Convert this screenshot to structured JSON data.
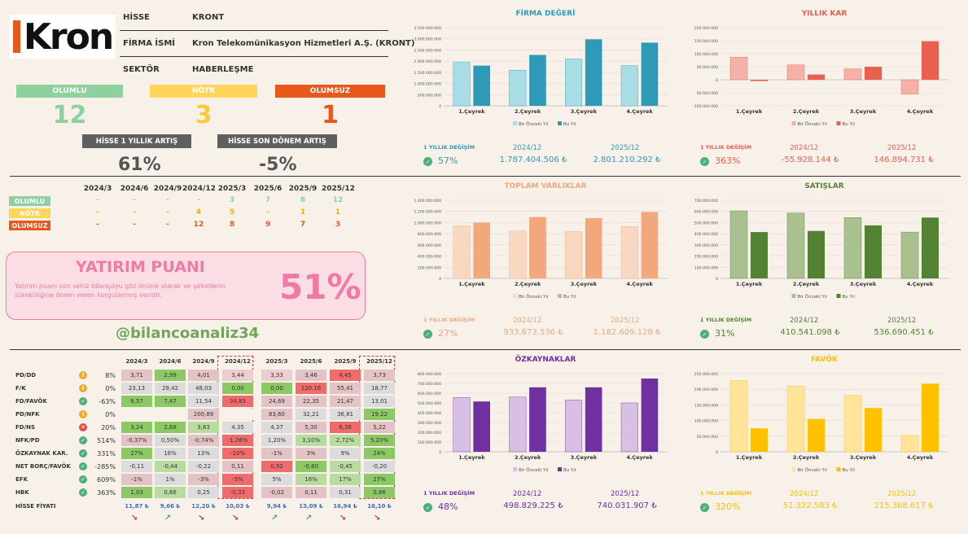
{
  "company": {
    "logo_text": "Kron",
    "fields": [
      {
        "key": "HİSSE",
        "value": "KRONT"
      },
      {
        "key": "FİRMA İSMİ",
        "value": "Kron Telekomünikasyon Hizmetleri A.Ş. (KRONT)"
      },
      {
        "key": "SEKTÖR",
        "value": "HABERLEŞME"
      }
    ]
  },
  "signals": {
    "olumlu_label": "OLUMLU",
    "olumlu_count": "12",
    "notr_label": "NÖTR",
    "notr_count": "3",
    "olumsuz_label": "OLUMSUZ",
    "olumsuz_count": "1",
    "colors": {
      "olumlu": "#8fd19e",
      "notr": "#ffd65a",
      "olumsuz": "#e8571c"
    }
  },
  "changes": {
    "yearly_label": "HİSSE 1 YILLIK ARTIŞ",
    "yearly_value": "61%",
    "period_label": "HİSSE SON DÖNEM ARTIŞ",
    "period_value": "-5%"
  },
  "history": {
    "periods": [
      "2024/3",
      "2024/6",
      "2024/9",
      "2024/12",
      "2025/3",
      "2025/6",
      "2025/9",
      "2025/12"
    ],
    "rows": [
      {
        "label": "OLUMLU",
        "color": "#8fd19e",
        "values": [
          "-",
          "-",
          "-",
          "-",
          "3",
          "7",
          "8",
          "12"
        ]
      },
      {
        "label": "NÖTR",
        "color": "#ffd65a",
        "values": [
          "-",
          "-",
          "-",
          "4",
          "5",
          "-",
          "1",
          "1"
        ]
      },
      {
        "label": "OLUMSUZ",
        "color": "#e8571c",
        "values": [
          "-",
          "-",
          "-",
          "12",
          "8",
          "9",
          "7",
          "3"
        ]
      }
    ]
  },
  "score": {
    "title": "YATIRIM PUANI",
    "desc": "Yatırım puanı son sekiz bilançoyu göz önüne alarak ve şirketlerin sürekliliğine önem veren kurgulanmış veridir.",
    "value": "51%"
  },
  "handle": "@bilancoanaliz34",
  "metrics": {
    "periods": [
      "2024/3",
      "2024/6",
      "2024/9",
      "2024/12",
      "2025/3",
      "2025/6",
      "2025/9",
      "2025/12"
    ],
    "rows": [
      {
        "name": "PD/DD",
        "status": "warn",
        "change": "8%",
        "values": [
          "3,71",
          "2,99",
          "4,01",
          "3,44",
          "3,33",
          "3,46",
          "4,45",
          "3,73"
        ],
        "colors": [
          "#e3c3c5",
          "#8cc965",
          "#e3c3c5",
          "#eccdd0",
          "#eccdd0",
          "#e3c3c5",
          "#f06b6b",
          "#e3c3c5"
        ]
      },
      {
        "name": "F/K",
        "status": "warn",
        "change": "0%",
        "values": [
          "23,13",
          "29,42",
          "48,03",
          "0,00",
          "0,00",
          "120,16",
          "55,41",
          "18,77"
        ],
        "colors": [
          "#dcdcdc",
          "#dcdcdc",
          "#dcdcdc",
          "#8cc965",
          "#8cc965",
          "#f06b6b",
          "#e3c3c5",
          "#dcdcdc"
        ]
      },
      {
        "name": "FD/FAVÖK",
        "status": "ok",
        "change": "-63%",
        "values": [
          "8,57",
          "7,47",
          "11,54",
          "34,83",
          "24,69",
          "22,35",
          "21,47",
          "13,01"
        ],
        "colors": [
          "#8cc965",
          "#8cc965",
          "#dcdcdc",
          "#f06b6b",
          "#e3c3c5",
          "#e3c3c5",
          "#e3c3c5",
          "#dcdcdc"
        ]
      },
      {
        "name": "PD/NFK",
        "status": "warn",
        "change": "0%",
        "values": [
          "",
          "",
          "200,89",
          "",
          "83,60",
          "32,21",
          "36,81",
          "19,22"
        ],
        "colors": [
          "#f7f1ea",
          "#f7f1ea",
          "#e3c3c5",
          "#f7f1ea",
          "#e3c3c5",
          "#dcdcdc",
          "#dcdcdc",
          "#8cc965"
        ]
      },
      {
        "name": "FD/NS",
        "status": "bad",
        "change": "20%",
        "values": [
          "3,24",
          "2,68",
          "3,83",
          "4,35",
          "4,37",
          "5,30",
          "6,36",
          "5,22"
        ],
        "colors": [
          "#8cc965",
          "#8cc965",
          "#b8dca0",
          "#dcdcdc",
          "#dcdcdc",
          "#e3c3c5",
          "#f06b6b",
          "#e3c3c5"
        ]
      },
      {
        "name": "NFK/PD",
        "status": "ok",
        "change": "514%",
        "values": [
          "-0,37%",
          "0,50%",
          "-0,74%",
          "-1,26%",
          "1,20%",
          "3,10%",
          "2,72%",
          "5,20%"
        ],
        "colors": [
          "#e3c3c5",
          "#dcdcdc",
          "#e3c3c5",
          "#f06b6b",
          "#dcdcdc",
          "#b8dca0",
          "#b8dca0",
          "#8cc965"
        ]
      },
      {
        "name": "ÖZKAYNAK KAR.",
        "status": "ok",
        "change": "331%",
        "values": [
          "27%",
          "16%",
          "13%",
          "-10%",
          "-1%",
          "3%",
          "9%",
          "24%"
        ],
        "colors": [
          "#8cc965",
          "#dcdcdc",
          "#dcdcdc",
          "#f06b6b",
          "#e3c3c5",
          "#e3c3c5",
          "#dcdcdc",
          "#8cc965"
        ]
      },
      {
        "name": "NET BORÇ/FAVÖK",
        "status": "ok",
        "change": "-285%",
        "values": [
          "-0,11",
          "-0,44",
          "-0,22",
          "0,11",
          "0,92",
          "-0,60",
          "-0,45",
          "-0,20"
        ],
        "colors": [
          "#dcdcdc",
          "#b8dca0",
          "#dcdcdc",
          "#e3c3c5",
          "#f06b6b",
          "#8cc965",
          "#b8dca0",
          "#dcdcdc"
        ]
      },
      {
        "name": "EFK",
        "status": "ok",
        "change": "609%",
        "values": [
          "-1%",
          "1%",
          "-3%",
          "-5%",
          "5%",
          "16%",
          "17%",
          "27%"
        ],
        "colors": [
          "#e3c3c5",
          "#dcdcdc",
          "#e3c3c5",
          "#f06b6b",
          "#dcdcdc",
          "#b8dca0",
          "#b8dca0",
          "#8cc965"
        ]
      },
      {
        "name": "HBK",
        "status": "ok",
        "change": "363%",
        "values": [
          "1,03",
          "0,66",
          "0,25",
          "-0,33",
          "-0,02",
          "0,11",
          "0,31",
          "0,86"
        ],
        "colors": [
          "#8cc965",
          "#b8dca0",
          "#dcdcdc",
          "#f06b6b",
          "#e3c3c5",
          "#e3c3c5",
          "#dcdcdc",
          "#8cc965"
        ]
      }
    ],
    "price_label": "HİSSE FİYATI",
    "prices": [
      "11,87 ₺",
      "9,66 ₺",
      "12,20 ₺",
      "10,03 ₺",
      "9,94 ₺",
      "13,09 ₺",
      "16,94 ₺",
      "16,10 ₺"
    ],
    "trends": [
      "down",
      "up",
      "down",
      "down",
      "up",
      "up",
      "down",
      "down"
    ]
  },
  "chart_data": [
    {
      "type": "bar",
      "title": "FİRMA DEĞERİ",
      "color": "#2e9ab8",
      "light": "#a9dde6",
      "categories": [
        "1.Çeyrek",
        "2.Çeyrek",
        "3.Çeyrek",
        "4.Çeyrek"
      ],
      "series": [
        {
          "name": "Bir Önceki Yıl",
          "values": [
            1950000000,
            1600000000,
            2100000000,
            1800000000
          ]
        },
        {
          "name": "Bu Yıl",
          "values": [
            1800000000,
            2280000000,
            2980000000,
            2830000000
          ]
        }
      ],
      "ylim": [
        0,
        3500000000
      ],
      "ticks": [
        "0",
        "500.000.000",
        "1.000.000.000",
        "1.500.000.000",
        "2.000.000.000",
        "2.500.000.000",
        "3.000.000.000",
        "3.500.000.000"
      ],
      "stats": {
        "label": "1 YILLIK DEĞİŞİM",
        "pct": "57%",
        "p1": "2024/12",
        "v1": "1.787.404.506 ₺",
        "p2": "2025/12",
        "v2": "2.801.210.292 ₺"
      }
    },
    {
      "type": "bar",
      "title": "YILLIK KAR",
      "color": "#e8604f",
      "light": "#f4b1a8",
      "categories": [
        "1.Çeyrek",
        "2.Çeyrek",
        "3.Çeyrek",
        "4.Çeyrek"
      ],
      "series": [
        {
          "name": "Bir Önceki Yıl",
          "values": [
            87000000,
            57000000,
            42000000,
            -55000000
          ]
        },
        {
          "name": "Bu Yıl",
          "values": [
            -5000000,
            20000000,
            50000000,
            148000000
          ]
        }
      ],
      "ylim": [
        -100000000,
        200000000
      ],
      "ticks": [
        "-100.000.000",
        "-50.000.000",
        "0",
        "50.000.000",
        "100.000.000",
        "150.000.000",
        "200.000.000"
      ],
      "stats": {
        "label": "1 YILLIK DEĞİŞİM",
        "pct": "363%",
        "p1": "2024/12",
        "v1": "-55.928.144 ₺",
        "p2": "2025/12",
        "v2": "146.894.731 ₺"
      }
    },
    {
      "type": "bar",
      "title": "TOPLAM VARLIKLAR",
      "color": "#f0a87c",
      "light": "#f8d8c0",
      "categories": [
        "1.Çeyrek",
        "2.Çeyrek",
        "3.Çeyrek",
        "4.Çeyrek"
      ],
      "series": [
        {
          "name": "Bir Önceki Yıl",
          "values": [
            940000000,
            850000000,
            840000000,
            930000000
          ]
        },
        {
          "name": "Bu Yıl",
          "values": [
            1000000000,
            1100000000,
            1080000000,
            1190000000
          ]
        }
      ],
      "ylim": [
        0,
        1400000000
      ],
      "ticks": [
        "0",
        "200.000.000",
        "400.000.000",
        "600.000.000",
        "800.000.000",
        "1.000.000.000",
        "1.200.000.000",
        "1.400.000.000"
      ],
      "stats": {
        "label": "1 YILLIK DEĞİŞİM",
        "pct": "27%",
        "p1": "2024/12",
        "v1": "933.673.536 ₺",
        "p2": "2025/12",
        "v2": "1.182.609.128 ₺"
      }
    },
    {
      "type": "bar",
      "title": "SATIŞLAR",
      "color": "#548235",
      "light": "#a9c18f",
      "categories": [
        "1.Çeyrek",
        "2.Çeyrek",
        "3.Çeyrek",
        "4.Çeyrek"
      ],
      "series": [
        {
          "name": "Bir Önceki Yıl",
          "values": [
            605000000,
            585000000,
            545000000,
            415000000
          ]
        },
        {
          "name": "Bu Yıl",
          "values": [
            415000000,
            425000000,
            475000000,
            545000000
          ]
        }
      ],
      "ylim": [
        0,
        700000000
      ],
      "ticks": [
        "0",
        "100.000.000",
        "200.000.000",
        "300.000.000",
        "400.000.000",
        "500.000.000",
        "600.000.000",
        "700.000.000"
      ],
      "stats": {
        "label": "1 YILLIK DEĞİŞİM",
        "pct": "31%",
        "p1": "2024/12",
        "v1": "410.541.098 ₺",
        "p2": "2025/12",
        "v2": "536.690.451 ₺"
      }
    },
    {
      "type": "bar",
      "title": "ÖZKAYNAKLAR",
      "color": "#7030a0",
      "light": "#d8bfe4",
      "categories": [
        "1.Çeyrek",
        "2.Çeyrek",
        "3.Çeyrek",
        "4.Çeyrek"
      ],
      "series": [
        {
          "name": "Bir Önceki Yıl",
          "values": [
            555000000,
            560000000,
            530000000,
            500000000
          ]
        },
        {
          "name": "Bu Yıl",
          "values": [
            515000000,
            660000000,
            660000000,
            750000000
          ]
        }
      ],
      "ylim": [
        0,
        800000000
      ],
      "ticks": [
        "0",
        "100.000.000",
        "200.000.000",
        "300.000.000",
        "400.000.000",
        "500.000.000",
        "600.000.000",
        "700.000.000",
        "800.000.000"
      ],
      "stats": {
        "label": "1 YILLIK DEĞİŞİM",
        "pct": "48%",
        "p1": "2024/12",
        "v1": "498.829.225 ₺",
        "p2": "2025/12",
        "v2": "740.031.907 ₺"
      }
    },
    {
      "type": "bar",
      "title": "FAVÖK",
      "color": "#ffc000",
      "light": "#ffe49a",
      "categories": [
        "1.Çeyrek",
        "2.Çeyrek",
        "3.Çeyrek",
        "4.Çeyrek"
      ],
      "series": [
        {
          "name": "Bir Önceki Yıl",
          "values": [
            228000000,
            210000000,
            180000000,
            52000000
          ]
        },
        {
          "name": "Bu Yıl",
          "values": [
            75000000,
            105000000,
            140000000,
            218000000
          ]
        }
      ],
      "ylim": [
        0,
        250000000
      ],
      "ticks": [
        "0",
        "50.000.000",
        "100.000.000",
        "150.000.000",
        "200.000.000",
        "250.000.000"
      ],
      "stats": {
        "label": "1 YILLIK DEĞİŞİM",
        "pct": "320%",
        "p1": "2024/12",
        "v1": "51.322.583 ₺",
        "p2": "2025/12",
        "v2": "215.368.617 ₺"
      }
    }
  ]
}
